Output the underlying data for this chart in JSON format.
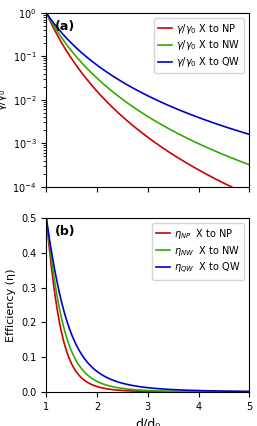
{
  "x_min": 1.0,
  "x_max": 5.0,
  "n_points": 500,
  "panel_a": {
    "label": "(a)",
    "ylabel": "γ/γ₀",
    "ylim_log": [
      -4,
      0
    ],
    "lines": [
      {
        "name": "NP",
        "color": "#cc0000",
        "power": 6,
        "legend": "γ/γ₀ X to NP"
      },
      {
        "name": "NW",
        "color": "#33aa00",
        "power": 5,
        "legend": "γ/γ₀ X to NW"
      },
      {
        "name": "QW",
        "color": "#0000cc",
        "power": 4,
        "legend": "γ/γ₀ X to QW"
      }
    ]
  },
  "panel_b": {
    "label": "(b)",
    "ylabel": "Efficiency (η)",
    "xlabel": "d/d₀",
    "ylim": [
      0,
      0.5
    ],
    "lines": [
      {
        "name": "NP",
        "color": "#cc0000",
        "power": 6,
        "legend": "ηₙₚ  X to NP"
      },
      {
        "name": "NW",
        "color": "#33aa00",
        "power": 5,
        "legend": "ηₙᴡ  X to NW"
      },
      {
        "name": "QW",
        "color": "#0000cc",
        "power": 4,
        "legend": "ηᵒᴡ  X to QW"
      }
    ]
  },
  "background_color": "#ffffff",
  "tick_fontsize": 7,
  "label_fontsize": 8,
  "legend_fontsize": 7,
  "linewidth": 1.2
}
